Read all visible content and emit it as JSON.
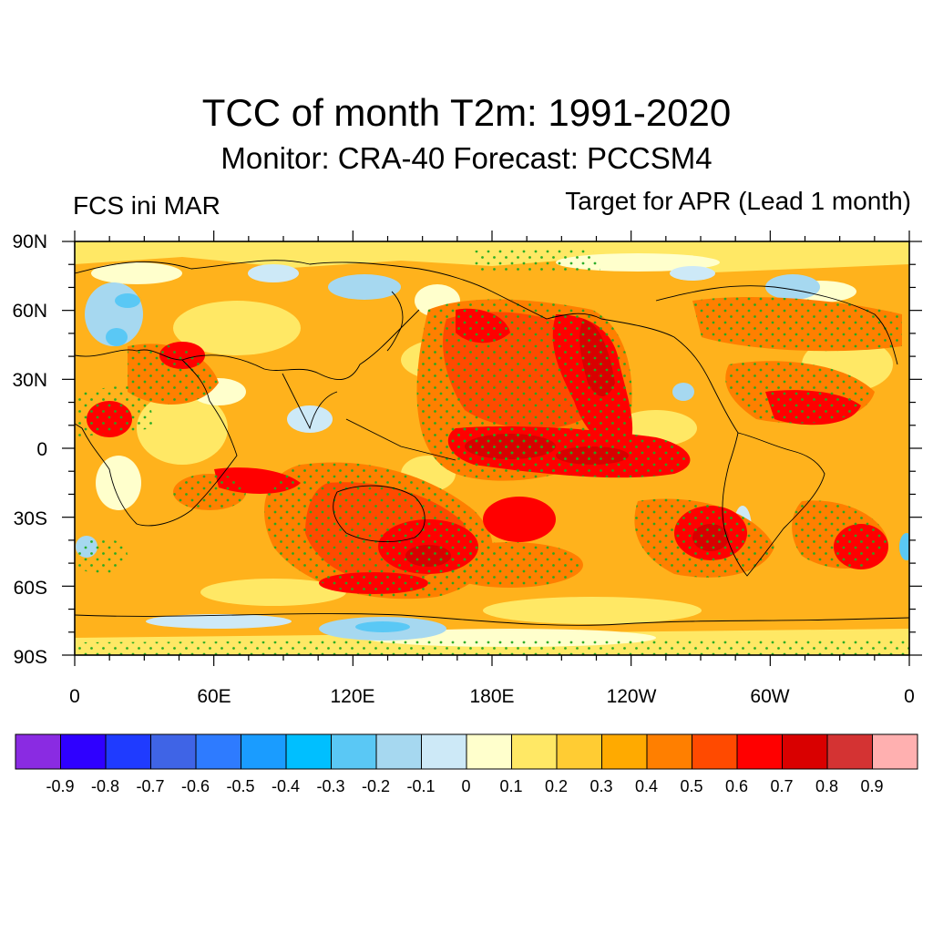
{
  "header": {
    "title": "TCC of month T2m: 1991-2020",
    "subtitle": "Monitor: CRA-40   Forecast: PCCSM4",
    "left_label": "FCS ini MAR",
    "right_label": "Target for APR (Lead 1 month)"
  },
  "map": {
    "projection": "cylindrical equidistant",
    "lon_ticks": [
      "0",
      "60E",
      "120E",
      "180E",
      "120W",
      "60W",
      "0"
    ],
    "lat_ticks": [
      "90N",
      "60N",
      "30N",
      "0",
      "30S",
      "60S",
      "90S"
    ],
    "stipple_color": "#22aa22",
    "coastline_color": "#000000"
  },
  "colorbar": {
    "colors": [
      "#8a2be2",
      "#2f00ff",
      "#1f3bff",
      "#3f64e6",
      "#2e7bff",
      "#1a9cff",
      "#00bfff",
      "#5ac8f5",
      "#a6d8f0",
      "#cde9f7",
      "#ffffcc",
      "#ffe865",
      "#ffcc33",
      "#ffaa00",
      "#ff7f00",
      "#ff4a00",
      "#ff0000",
      "#d90000",
      "#d43333",
      "#ffb0b0"
    ],
    "labels": [
      "-0.9",
      "-0.8",
      "-0.7",
      "-0.6",
      "-0.5",
      "-0.4",
      "-0.3",
      "-0.2",
      "-0.1",
      "0",
      "0.1",
      "0.2",
      "0.3",
      "0.4",
      "0.5",
      "0.6",
      "0.7",
      "0.8",
      "0.9"
    ]
  }
}
